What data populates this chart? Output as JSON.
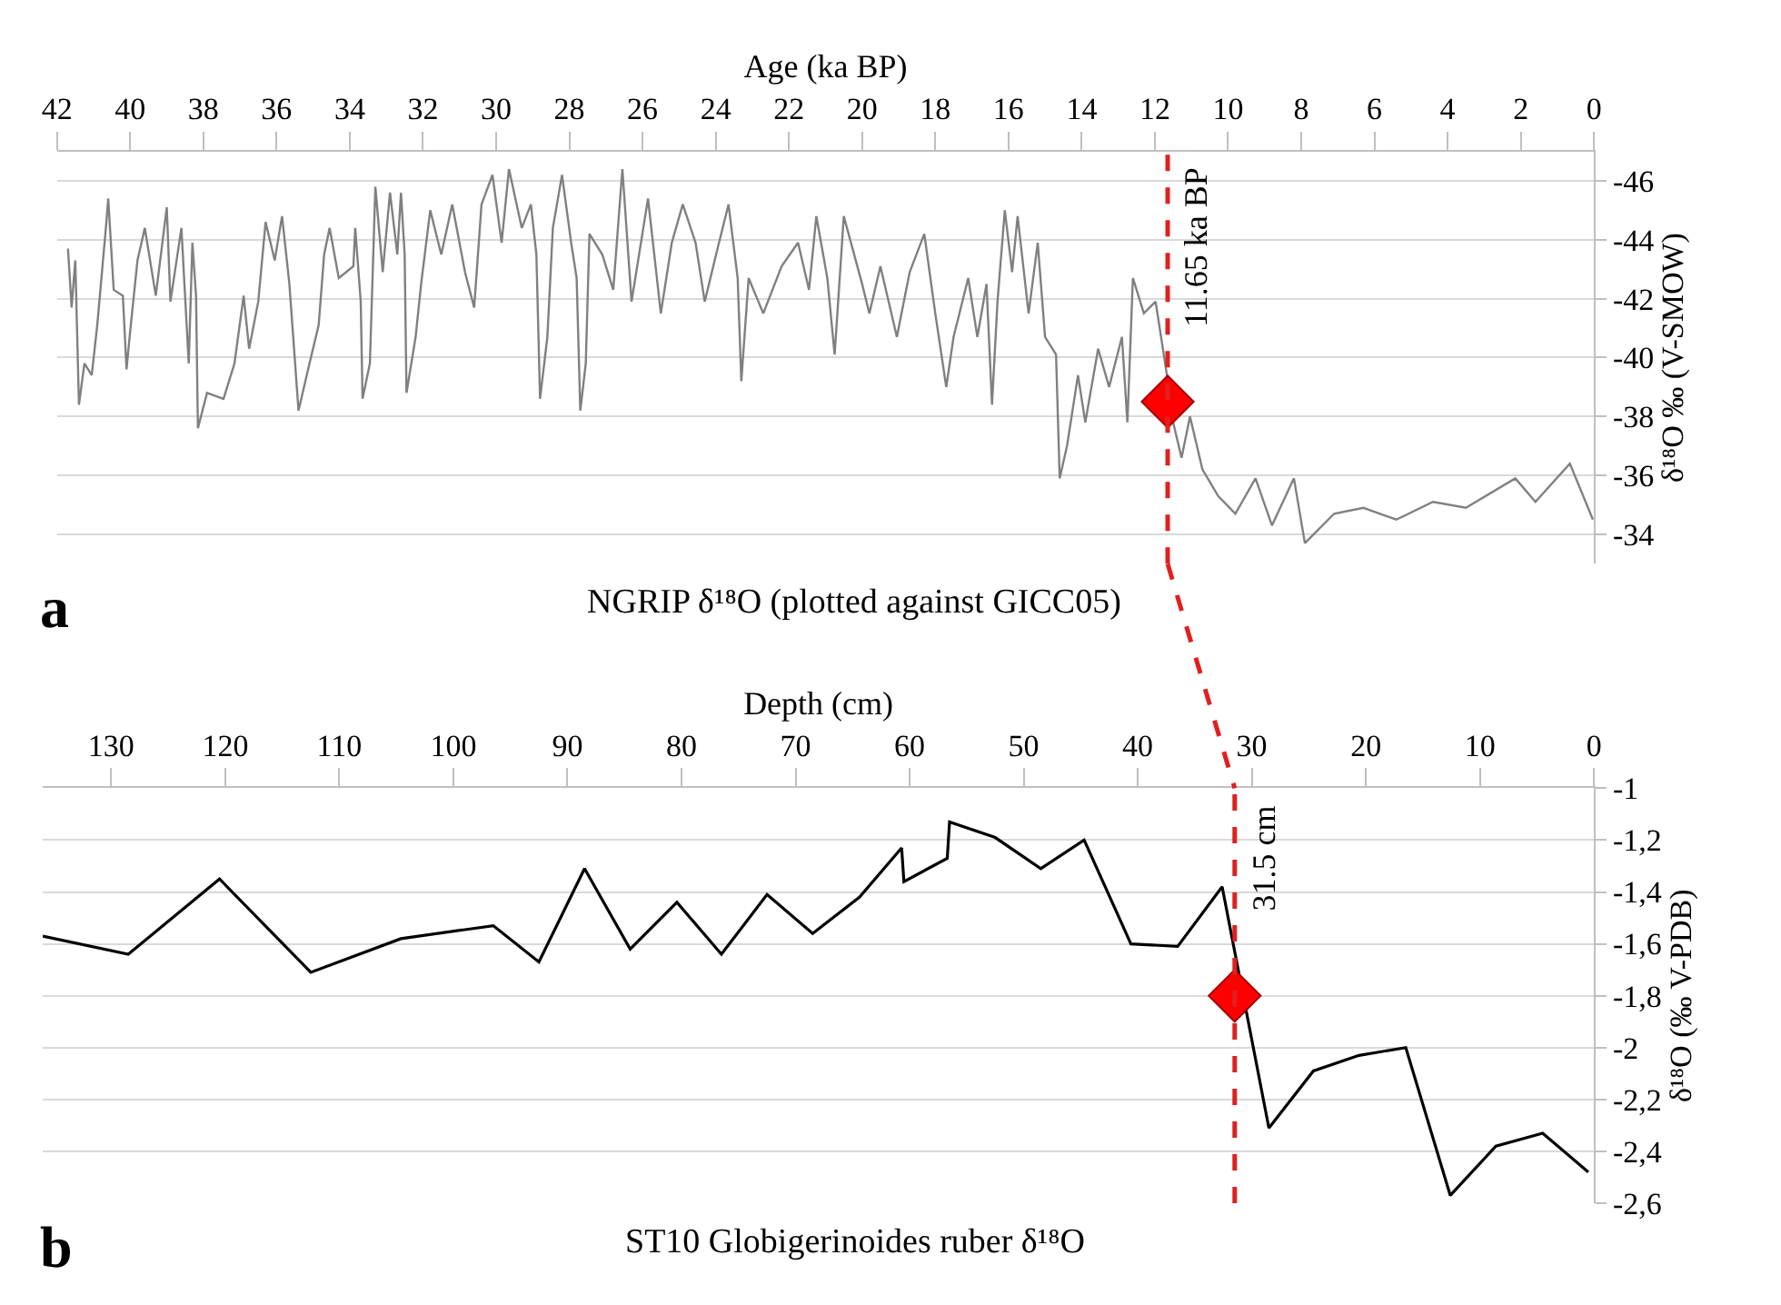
{
  "chart_data": [
    {
      "type": "line",
      "title": "NGRIP δ¹⁸O (plotted against GICC05)",
      "xlabel": "Age (ka BP)",
      "ylabel": "δ¹⁸O ‰ (V-SMOW)",
      "annotations": [
        "a"
      ],
      "xlim": [
        42,
        0
      ],
      "xticks": [
        42,
        40,
        38,
        36,
        34,
        32,
        30,
        28,
        26,
        24,
        22,
        20,
        18,
        16,
        14,
        12,
        10,
        8,
        6,
        4,
        2,
        0
      ],
      "ylim": [
        -33,
        -47
      ],
      "yticks": [
        -46,
        -44,
        -42,
        -40,
        -38,
        -36,
        -34
      ],
      "grid": "y",
      "ref_lines": [
        {
          "axis": "x",
          "value": 11.65,
          "label": "11.65 ka BP",
          "color": "#e02020",
          "line_style": "dashed"
        }
      ],
      "series": [
        {
          "color": "#808080",
          "x": [
            41.7,
            41.6,
            41.5,
            41.4,
            41.25,
            41.05,
            40.9,
            40.65,
            40.6,
            40.45,
            40.2,
            40.1,
            40.0,
            39.8,
            39.6,
            39.3,
            39.0,
            38.9,
            38.6,
            38.4,
            38.3,
            38.2,
            38.15,
            37.9,
            37.45,
            37.15,
            36.9,
            36.75,
            36.5,
            36.3,
            36.05,
            35.85,
            35.65,
            35.4,
            35.1,
            34.85,
            34.7,
            34.55,
            34.3,
            33.9,
            33.85,
            33.7,
            33.65,
            33.45,
            33.3,
            33.1,
            32.9,
            32.7,
            32.6,
            32.5,
            32.45,
            32.2,
            32.05,
            31.8,
            31.5,
            31.2,
            30.85,
            30.6,
            30.4,
            30.1,
            29.85,
            29.65,
            29.3,
            29.05,
            28.9,
            28.8,
            28.6,
            28.45,
            28.2,
            27.95,
            27.8,
            27.7,
            27.55,
            27.45,
            27.1,
            26.8,
            26.55,
            26.3,
            25.85,
            25.5,
            25.2,
            24.9,
            24.55,
            24.3,
            23.95,
            23.65,
            23.4,
            23.3,
            23.1,
            22.7,
            22.2,
            21.75,
            21.45,
            21.25,
            20.95,
            20.75,
            20.5,
            20.0,
            19.8,
            19.5,
            19.05,
            18.7,
            18.3,
            18.0,
            17.7,
            17.5,
            17.1,
            16.85,
            16.6,
            16.45,
            16.3,
            16.1,
            15.9,
            15.75,
            15.45,
            15.2,
            15.0,
            14.7,
            14.6,
            14.4,
            14.1,
            13.9,
            13.55,
            13.25,
            12.9,
            12.75,
            12.6,
            12.3,
            11.98,
            11.83,
            11.67,
            11.5,
            11.27,
            11.04,
            10.7,
            10.27,
            9.8,
            9.25,
            8.8,
            8.2,
            7.9,
            7.1,
            6.3,
            5.4,
            4.4,
            3.5,
            2.15,
            1.6,
            0.66,
            0.03
          ],
          "values": [
            -43.7,
            -41.7,
            -43.3,
            -38.4,
            -39.8,
            -39.4,
            -41.1,
            -44.6,
            -45.4,
            -42.3,
            -42.1,
            -39.6,
            -40.9,
            -43.3,
            -44.4,
            -42.1,
            -45.1,
            -41.9,
            -44.4,
            -39.8,
            -43.9,
            -42.1,
            -37.6,
            -38.8,
            -38.6,
            -39.8,
            -42.1,
            -40.3,
            -41.9,
            -44.6,
            -43.3,
            -44.8,
            -42.5,
            -38.2,
            -39.8,
            -41.1,
            -43.5,
            -44.4,
            -42.7,
            -43.1,
            -44.4,
            -41.9,
            -38.6,
            -39.8,
            -45.8,
            -42.9,
            -45.6,
            -43.5,
            -45.6,
            -43.5,
            -38.8,
            -40.7,
            -42.5,
            -45.0,
            -43.5,
            -45.2,
            -42.9,
            -41.7,
            -45.2,
            -46.2,
            -43.9,
            -46.4,
            -44.4,
            -45.2,
            -43.5,
            -38.6,
            -40.7,
            -44.4,
            -46.2,
            -43.9,
            -42.7,
            -38.2,
            -39.8,
            -44.2,
            -43.5,
            -42.3,
            -46.4,
            -41.9,
            -45.4,
            -41.5,
            -43.9,
            -45.2,
            -43.9,
            -41.9,
            -43.7,
            -45.2,
            -42.7,
            -39.2,
            -42.7,
            -41.5,
            -43.1,
            -43.9,
            -42.3,
            -44.8,
            -42.7,
            -40.1,
            -44.8,
            -42.5,
            -41.5,
            -43.1,
            -40.7,
            -42.9,
            -44.2,
            -41.5,
            -39.0,
            -40.7,
            -42.7,
            -40.7,
            -42.5,
            -38.4,
            -41.9,
            -45.0,
            -42.9,
            -44.8,
            -41.5,
            -43.9,
            -40.7,
            -40.1,
            -35.9,
            -37.0,
            -39.4,
            -37.8,
            -40.3,
            -39.0,
            -40.7,
            -37.8,
            -42.7,
            -41.5,
            -41.9,
            -40.7,
            -39.4,
            -37.8,
            -36.6,
            -38.0,
            -36.2,
            -35.3,
            -34.7,
            -35.9,
            -34.3,
            -35.9,
            -33.7,
            -34.7,
            -34.9,
            -34.5,
            -35.1,
            -34.9,
            -35.9,
            -35.1,
            -36.4,
            -34.5
          ]
        },
        {
          "type": "scatter",
          "color": "#ff0000",
          "marker": "diamond",
          "x": [
            11.65
          ],
          "values": [
            -38.5
          ]
        }
      ]
    },
    {
      "type": "line",
      "title": "ST10 Globigerinoides ruber δ¹⁸O",
      "xlabel": "Depth (cm)",
      "ylabel": "δ¹⁸O (‰ V-PDB)",
      "annotations": [
        "b"
      ],
      "xlim": [
        136,
        0
      ],
      "xticks": [
        130,
        120,
        110,
        100,
        90,
        80,
        70,
        60,
        50,
        40,
        30,
        20,
        10,
        0
      ],
      "ylim": [
        -2.6,
        -1
      ],
      "yticks": [
        -1,
        {
          "value": -1.2,
          "label": "-1,2"
        },
        {
          "value": -1.4,
          "label": "-1,4"
        },
        {
          "value": -1.6,
          "label": "-1,6"
        },
        {
          "value": -1.8,
          "label": "-1,8"
        },
        -2,
        {
          "value": -2.2,
          "label": "-2,2"
        },
        {
          "value": -2.4,
          "label": "-2,4"
        },
        {
          "value": -2.6,
          "label": "-2,6"
        }
      ],
      "grid": "y",
      "ref_lines": [
        {
          "axis": "x",
          "value": 31.5,
          "label": "31.5 cm",
          "color": "#e02020",
          "line_style": "dashed"
        }
      ],
      "series": [
        {
          "color": "#000000",
          "x": [
            136,
            128.5,
            120.5,
            112.5,
            104.6,
            96.5,
            92.5,
            88.5,
            84.5,
            80.4,
            76.5,
            72.5,
            68.5,
            64.4,
            60.7,
            60.5,
            56.7,
            56.5,
            52.5,
            48.5,
            44.7,
            40.6,
            36.5,
            32.6,
            28.5,
            24.6,
            20.6,
            16.5,
            12.6,
            8.6,
            4.5,
            0.5
          ],
          "values": [
            -1.57,
            -1.64,
            -1.35,
            -1.71,
            -1.58,
            -1.53,
            -1.67,
            -1.31,
            -1.62,
            -1.44,
            -1.64,
            -1.41,
            -1.56,
            -1.42,
            -1.23,
            -1.36,
            -1.27,
            -1.13,
            -1.19,
            -1.31,
            -1.2,
            -1.6,
            -1.61,
            -1.38,
            -2.31,
            -2.09,
            -2.03,
            -2.0,
            -2.57,
            -2.38,
            -2.33,
            -2.48
          ]
        },
        {
          "type": "scatter",
          "color": "#ff0000",
          "marker": "diamond",
          "x": [
            31.5
          ],
          "values": [
            -1.8
          ]
        }
      ]
    }
  ]
}
